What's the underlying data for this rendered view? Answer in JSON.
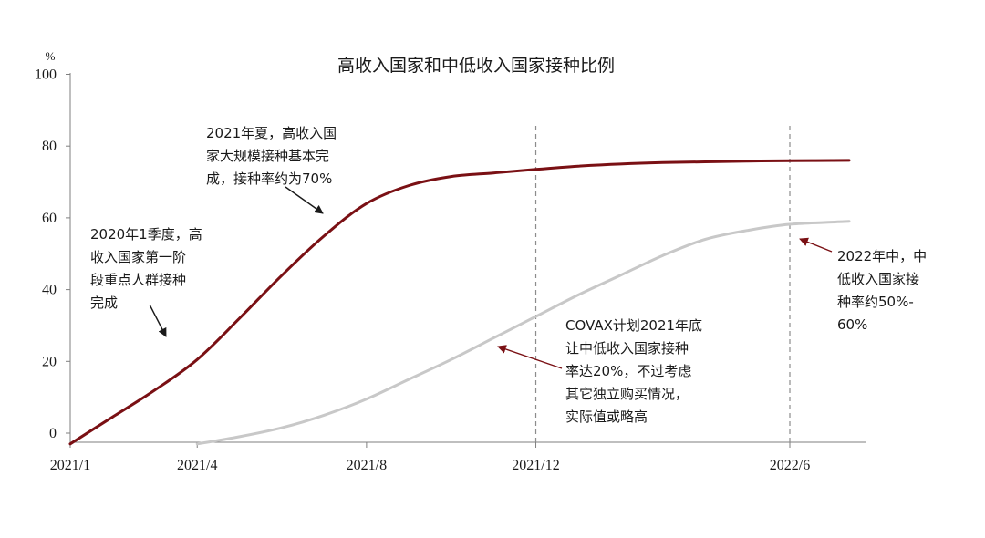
{
  "chart_data": {
    "type": "line",
    "title": "高收入国家和中低收入国家接种比例",
    "ylabel": "%",
    "xlabel": "",
    "ylim": [
      -3,
      100
    ],
    "yticks": [
      0,
      20,
      40,
      60,
      80,
      100
    ],
    "xticks": [
      {
        "label": "2021/1",
        "x": 0
      },
      {
        "label": "2021/4",
        "x": 3
      },
      {
        "label": "2021/8",
        "x": 7
      },
      {
        "label": "2021/12",
        "x": 11
      },
      {
        "label": "2022/6",
        "x": 17
      }
    ],
    "xlim": [
      0,
      18.5
    ],
    "vlines": [
      11,
      17
    ],
    "grid": false,
    "legend": "none",
    "series": [
      {
        "color": "#7a1014",
        "points": [
          [
            0,
            -3
          ],
          [
            1,
            4.5
          ],
          [
            2,
            12
          ],
          [
            3,
            20.5
          ],
          [
            4,
            32
          ],
          [
            5,
            44
          ],
          [
            6,
            55
          ],
          [
            7,
            64
          ],
          [
            8,
            69
          ],
          [
            9,
            71.5
          ],
          [
            10,
            72.5
          ],
          [
            11,
            73.5
          ],
          [
            12,
            74.4
          ],
          [
            13,
            75
          ],
          [
            14,
            75.4
          ],
          [
            15,
            75.6
          ],
          [
            16,
            75.8
          ],
          [
            17,
            75.9
          ],
          [
            18.4,
            76
          ]
        ]
      },
      {
        "color": "#c8c8c8",
        "points": [
          [
            3,
            -3
          ],
          [
            4,
            -1
          ],
          [
            5,
            1.5
          ],
          [
            6,
            5
          ],
          [
            7,
            9.5
          ],
          [
            8,
            15
          ],
          [
            9,
            20.5
          ],
          [
            10,
            26.5
          ],
          [
            11,
            32.5
          ],
          [
            12,
            38.5
          ],
          [
            13,
            44
          ],
          [
            14,
            49.5
          ],
          [
            15,
            54
          ],
          [
            16,
            56.5
          ],
          [
            17,
            58.2
          ],
          [
            18.4,
            59
          ]
        ]
      }
    ],
    "annotations": [
      {
        "lines": [
          "2020年1季度，高",
          "收入国家第一阶",
          "段重点人群接种",
          "完成"
        ]
      },
      {
        "lines": [
          "2021年夏，高收入国",
          "家大规模接种基本完",
          "成，接种率约为70%"
        ]
      },
      {
        "lines": [
          "COVAX计划2021年底",
          "让中低收入国家接种",
          "率达20%，不过考虑",
          "其它独立购买情况，",
          "实际值或略高"
        ]
      },
      {
        "lines": [
          "2022年中，中",
          "低收入国家接",
          "种率约50%-",
          "60%"
        ]
      }
    ]
  },
  "colors": {
    "high_income": "#7a1014",
    "low_income": "#c8c8c8",
    "axis": "#7f7f7f",
    "dashed": "#8c8c8c",
    "text": "#1a1a1a",
    "arrow_dark": "#1a1a1a",
    "arrow_red": "#7a1014"
  }
}
